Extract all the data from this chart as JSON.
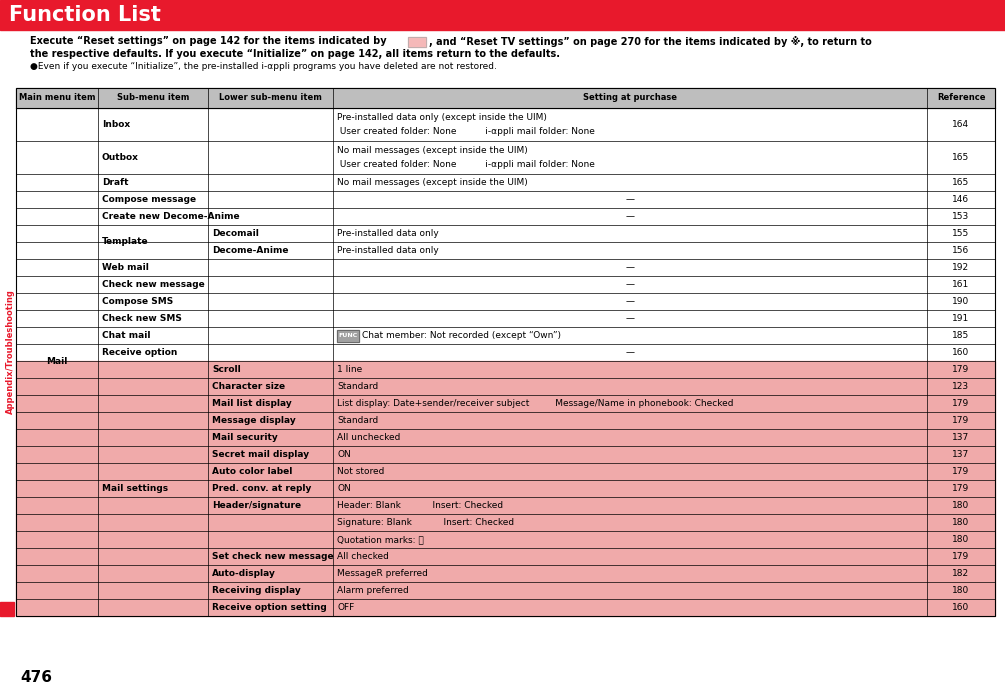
{
  "title": "Function List",
  "title_bg": "#E8192C",
  "title_color": "#FFFFFF",
  "page_number": "476",
  "sidebar_text": "Appendix/Troubleshooting",
  "header_bg": "#BEBEBE",
  "row_highlight": "#F0AAAA",
  "white_bg": "#FFFFFF",
  "indicator_color": "#F5B8B8",
  "func_box_color": "#A0A0A0",
  "col_headers": [
    "Main menu item",
    "Sub-menu item",
    "Lower sub-menu item",
    "Setting at purchase",
    "Reference"
  ],
  "rows": [
    {
      "main": "Mail",
      "sub": "Inbox",
      "lower": "",
      "setting": "Pre-installed data only (except inside the UIM)\n User created folder: None          i-αppli mail folder: None",
      "ref": "164",
      "highlight": false
    },
    {
      "main": "",
      "sub": "Outbox",
      "lower": "",
      "setting": "No mail messages (except inside the UIM)\n User created folder: None          i-αppli mail folder: None",
      "ref": "165",
      "highlight": false
    },
    {
      "main": "",
      "sub": "Draft",
      "lower": "",
      "setting": "No mail messages (except inside the UIM)",
      "ref": "165",
      "highlight": false
    },
    {
      "main": "",
      "sub": "Compose message",
      "lower": "",
      "setting": "—",
      "ref": "146",
      "highlight": false
    },
    {
      "main": "",
      "sub": "Create new Decome-Anime",
      "lower": "",
      "setting": "—",
      "ref": "153",
      "highlight": false
    },
    {
      "main": "",
      "sub": "Template",
      "lower": "Decomail",
      "setting": "Pre-installed data only",
      "ref": "155",
      "highlight": false
    },
    {
      "main": "",
      "sub": "",
      "lower": "Decome-Anime",
      "setting": "Pre-installed data only",
      "ref": "156",
      "highlight": false
    },
    {
      "main": "",
      "sub": "Web mail",
      "lower": "",
      "setting": "—",
      "ref": "192",
      "highlight": false
    },
    {
      "main": "",
      "sub": "Check new message",
      "lower": "",
      "setting": "—",
      "ref": "161",
      "highlight": false
    },
    {
      "main": "",
      "sub": "Compose SMS",
      "lower": "",
      "setting": "—",
      "ref": "190",
      "highlight": false
    },
    {
      "main": "",
      "sub": "Check new SMS",
      "lower": "",
      "setting": "—",
      "ref": "191",
      "highlight": false
    },
    {
      "main": "",
      "sub": "Chat mail",
      "lower": "",
      "setting": "[FUNC]Chat member: Not recorded (except “Own”)",
      "ref": "185",
      "highlight": false
    },
    {
      "main": "",
      "sub": "Receive option",
      "lower": "",
      "setting": "—",
      "ref": "160",
      "highlight": false
    },
    {
      "main": "",
      "sub": "Mail settings",
      "lower": "Scroll",
      "setting": "1 line",
      "ref": "179",
      "highlight": true
    },
    {
      "main": "",
      "sub": "",
      "lower": "Character size",
      "setting": "Standard",
      "ref": "123",
      "highlight": true
    },
    {
      "main": "",
      "sub": "",
      "lower": "Mail list display",
      "setting": "List display: Date+sender/receiver subject         Message/Name in phonebook: Checked",
      "ref": "179",
      "highlight": true
    },
    {
      "main": "",
      "sub": "",
      "lower": "Message display",
      "setting": "Standard",
      "ref": "179",
      "highlight": true
    },
    {
      "main": "",
      "sub": "",
      "lower": "Mail security",
      "setting": "All unchecked",
      "ref": "137",
      "highlight": true
    },
    {
      "main": "",
      "sub": "",
      "lower": "Secret mail display",
      "setting": "ON",
      "ref": "137",
      "highlight": true
    },
    {
      "main": "",
      "sub": "",
      "lower": "Auto color label",
      "setting": "Not stored",
      "ref": "179",
      "highlight": true
    },
    {
      "main": "",
      "sub": "",
      "lower": "Pred. conv. at reply",
      "setting": "ON",
      "ref": "179",
      "highlight": true
    },
    {
      "main": "",
      "sub": "",
      "lower": "Header/signature",
      "setting": "Header: Blank           Insert: Checked",
      "ref": "180",
      "highlight": true
    },
    {
      "main": "",
      "sub": "",
      "lower": "",
      "setting": "Signature: Blank           Insert: Checked",
      "ref": "180",
      "highlight": true
    },
    {
      "main": "",
      "sub": "",
      "lower": "",
      "setting": "Quotation marks: 》",
      "ref": "180",
      "highlight": true
    },
    {
      "main": "",
      "sub": "",
      "lower": "Set check new message",
      "setting": "All checked",
      "ref": "179",
      "highlight": true
    },
    {
      "main": "",
      "sub": "",
      "lower": "Auto-display",
      "setting": "MessageR preferred",
      "ref": "182",
      "highlight": true
    },
    {
      "main": "",
      "sub": "",
      "lower": "Receiving display",
      "setting": "Alarm preferred",
      "ref": "180",
      "highlight": true
    },
    {
      "main": "",
      "sub": "",
      "lower": "Receive option setting",
      "setting": "OFF",
      "ref": "160",
      "highlight": true
    }
  ]
}
